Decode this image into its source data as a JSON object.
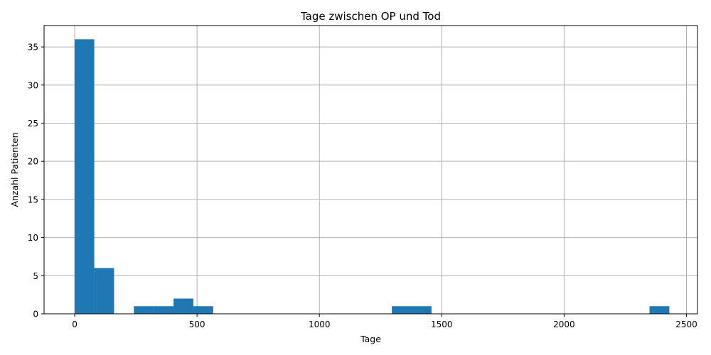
{
  "chart_data": {
    "type": "bar",
    "title": "Tage zwischen OP und Tod",
    "xlabel": "Tage",
    "ylabel": "Anzahl Patienten",
    "xlim": [
      -125,
      2545
    ],
    "ylim": [
      0,
      37.8
    ],
    "xticks": [
      0,
      500,
      1000,
      1500,
      2000,
      2500
    ],
    "yticks": [
      0,
      5,
      10,
      15,
      20,
      25,
      30,
      35
    ],
    "grid": true,
    "color": "#1f77b4",
    "bins": [
      {
        "start": 0,
        "end": 80,
        "count": 36
      },
      {
        "start": 80,
        "end": 161,
        "count": 6
      },
      {
        "start": 242,
        "end": 323,
        "count": 1
      },
      {
        "start": 323,
        "end": 404,
        "count": 1
      },
      {
        "start": 404,
        "end": 485,
        "count": 2
      },
      {
        "start": 485,
        "end": 566,
        "count": 1
      },
      {
        "start": 1296,
        "end": 1377,
        "count": 1
      },
      {
        "start": 1377,
        "end": 1458,
        "count": 1
      },
      {
        "start": 2349,
        "end": 2430,
        "count": 1
      }
    ]
  }
}
